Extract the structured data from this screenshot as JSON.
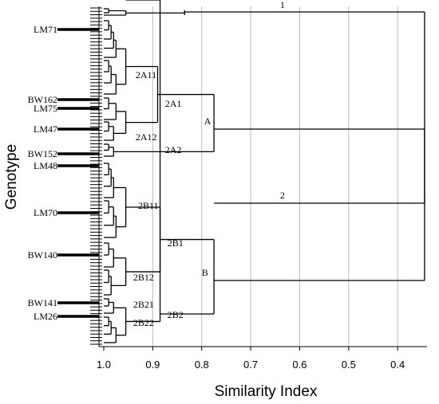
{
  "chart_data": {
    "type": "dendrogram",
    "xlabel": "Similarity Index",
    "ylabel": "Genotype",
    "xlim": [
      1.0,
      0.34
    ],
    "ticks": [
      "1.0",
      "0.9",
      "0.8",
      "0.7",
      "0.6",
      "0.5",
      "0.4"
    ],
    "tick_values": [
      1.0,
      0.9,
      0.8,
      0.7,
      0.6,
      0.5,
      0.4
    ],
    "grid": true,
    "highlighted_genotypes": [
      "LM71",
      "BW162",
      "LM75",
      "LM47",
      "BW152",
      "LM48",
      "LM70",
      "BW140",
      "BW141",
      "LM26"
    ],
    "clusters": [
      {
        "label": "1",
        "similarity": 0.345
      },
      {
        "label": "2",
        "similarity": 0.345
      },
      {
        "label": "A",
        "similarity": 0.775
      },
      {
        "label": "B",
        "similarity": 0.775
      },
      {
        "label": "2A1",
        "similarity": 0.89
      },
      {
        "label": "2A2",
        "similarity": 0.89
      },
      {
        "label": "2A11",
        "similarity": 0.955
      },
      {
        "label": "2A12",
        "similarity": 0.955
      },
      {
        "label": "2B1",
        "similarity": 0.885
      },
      {
        "label": "2B2",
        "similarity": 0.885
      },
      {
        "label": "2B11",
        "similarity": 0.955
      },
      {
        "label": "2B12",
        "similarity": 0.955
      },
      {
        "label": "2B21",
        "similarity": 0.955
      },
      {
        "label": "2B22",
        "similarity": 0.955
      }
    ]
  }
}
